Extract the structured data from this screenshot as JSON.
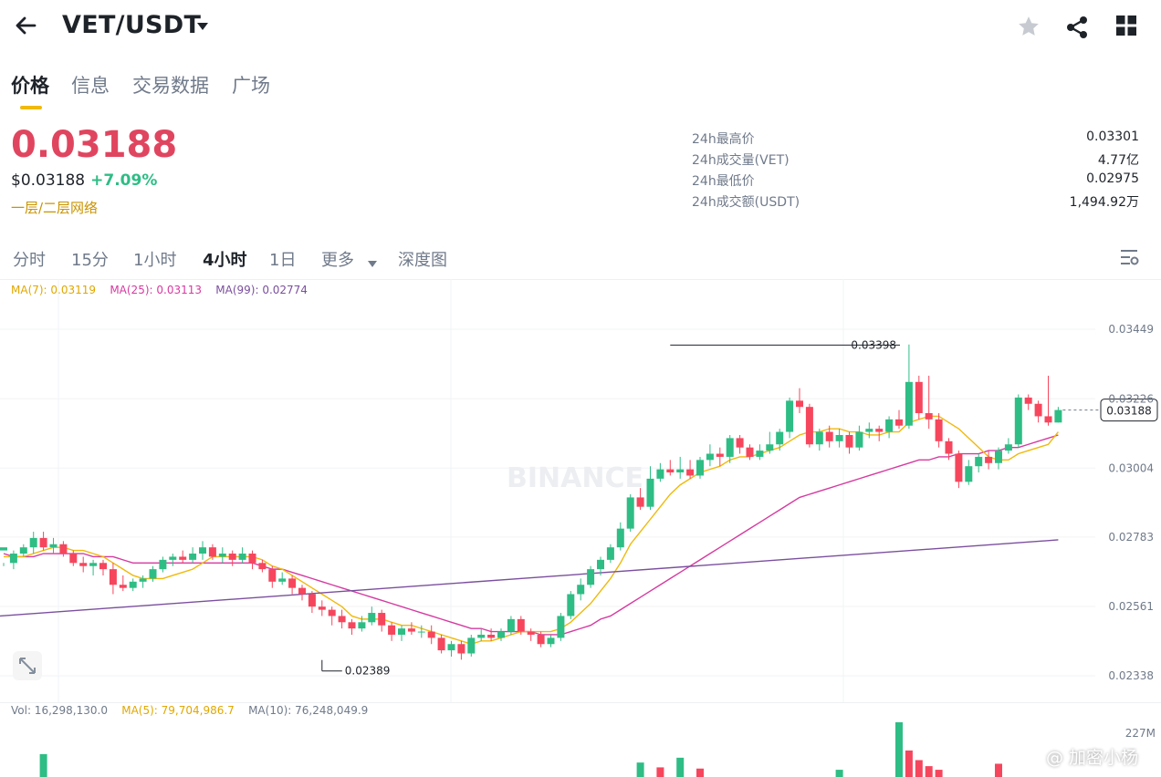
{
  "header": {
    "pair": "VET/USDT",
    "back_icon": "arrow-left-icon",
    "dropdown_icon": "caret-down-icon",
    "star_icon": "star-icon",
    "share_icon": "share-icon",
    "grid_icon": "grid-icon"
  },
  "tabs": [
    "价格",
    "信息",
    "交易数据",
    "广场"
  ],
  "price": {
    "last": "0.03188",
    "usd": "$0.03188",
    "change": "+7.09%",
    "network": "一层/二层网络"
  },
  "stats": [
    {
      "label": "24h最高价",
      "value": "0.03301"
    },
    {
      "label": "24h成交量(VET)",
      "value": "4.77亿"
    },
    {
      "label": "24h最低价",
      "value": "0.02975"
    },
    {
      "label": "24h成交额(USDT)",
      "value": "1,494.92万"
    }
  ],
  "intervals": [
    "分时",
    "15分",
    "1小时",
    "4小时",
    "1日",
    "更多",
    "深度图"
  ],
  "active_interval": "4小时",
  "ma": {
    "ma7": "MA(7): 0.03119",
    "ma25": "MA(25): 0.03113",
    "ma99": "MA(99): 0.02774"
  },
  "vol": {
    "vol": "Vol: 16,298,130.0",
    "ma5": "MA(5): 79,704,986.7",
    "ma10": "MA(10): 76,248,049.9",
    "max_label": "227M"
  },
  "watermark": "BINANCE",
  "corner_watermark": "@ 加密小杨",
  "colors": {
    "up": "#2ebd85",
    "down": "#f6465d",
    "ma7": "#f0b90b",
    "ma25": "#d63aa0",
    "ma99": "#7b4f9e",
    "accent": "#f0b90b"
  },
  "chart_data": {
    "type": "candlestick",
    "y_ticks": [
      "0.03449",
      "0.03226",
      "0.03004",
      "0.02783",
      "0.02561",
      "0.02338"
    ],
    "y_tick_values": [
      0.03449,
      0.03226,
      0.03004,
      0.02783,
      0.02561,
      0.02338
    ],
    "ylim": [
      0.0228,
      0.0356
    ],
    "last_price_label": "0.03188",
    "high_marker": {
      "label": "0.03398",
      "value": 0.03398,
      "index": 67
    },
    "low_marker": {
      "label": "0.02389",
      "value": 0.02389,
      "index": 32
    },
    "candles": [
      [
        0.0274,
        0.0275,
        0.027,
        0.0269
      ],
      [
        0.027,
        0.0273,
        0.0274,
        0.0268
      ],
      [
        0.0273,
        0.0275,
        0.0276,
        0.0272
      ],
      [
        0.0275,
        0.0278,
        0.028,
        0.0273
      ],
      [
        0.0278,
        0.0275,
        0.028,
        0.0274
      ],
      [
        0.0275,
        0.0276,
        0.0278,
        0.0273
      ],
      [
        0.0276,
        0.0273,
        0.0277,
        0.0272
      ],
      [
        0.0273,
        0.027,
        0.0274,
        0.0269
      ],
      [
        0.027,
        0.0269,
        0.0272,
        0.0267
      ],
      [
        0.0269,
        0.027,
        0.0271,
        0.0266
      ],
      [
        0.027,
        0.0268,
        0.0271,
        0.0266
      ],
      [
        0.0268,
        0.0263,
        0.027,
        0.026
      ],
      [
        0.0263,
        0.0262,
        0.0266,
        0.0261
      ],
      [
        0.0262,
        0.0264,
        0.0265,
        0.0261
      ],
      [
        0.0264,
        0.0265,
        0.0266,
        0.0262
      ],
      [
        0.0265,
        0.0268,
        0.0269,
        0.0264
      ],
      [
        0.0268,
        0.0271,
        0.0272,
        0.0267
      ],
      [
        0.0271,
        0.0272,
        0.0273,
        0.0269
      ],
      [
        0.0272,
        0.0271,
        0.0274,
        0.027
      ],
      [
        0.0271,
        0.0273,
        0.0275,
        0.027
      ],
      [
        0.0273,
        0.0275,
        0.0277,
        0.0271
      ],
      [
        0.0275,
        0.0272,
        0.0276,
        0.0271
      ],
      [
        0.0272,
        0.0273,
        0.0275,
        0.027
      ],
      [
        0.0273,
        0.0271,
        0.0274,
        0.0269
      ],
      [
        0.0271,
        0.0273,
        0.0275,
        0.027
      ],
      [
        0.0273,
        0.027,
        0.0274,
        0.0268
      ],
      [
        0.027,
        0.0268,
        0.0271,
        0.0267
      ],
      [
        0.0268,
        0.0264,
        0.0269,
        0.0262
      ],
      [
        0.0264,
        0.0265,
        0.0267,
        0.0263
      ],
      [
        0.0265,
        0.0262,
        0.0266,
        0.026
      ],
      [
        0.0262,
        0.026,
        0.0263,
        0.0258
      ],
      [
        0.026,
        0.0256,
        0.0261,
        0.0254
      ],
      [
        0.0256,
        0.0255,
        0.0258,
        0.0253
      ],
      [
        0.0255,
        0.0253,
        0.0256,
        0.025
      ],
      [
        0.0253,
        0.0251,
        0.0255,
        0.0249
      ],
      [
        0.0251,
        0.0249,
        0.0252,
        0.0247
      ],
      [
        0.0249,
        0.0251,
        0.0253,
        0.0248
      ],
      [
        0.0251,
        0.0254,
        0.0256,
        0.025
      ],
      [
        0.0254,
        0.025,
        0.0255,
        0.0248
      ],
      [
        0.025,
        0.0247,
        0.0251,
        0.0245
      ],
      [
        0.0247,
        0.0249,
        0.025,
        0.0245
      ],
      [
        0.0249,
        0.0248,
        0.0251,
        0.0247
      ],
      [
        0.0248,
        0.0248,
        0.025,
        0.0246
      ],
      [
        0.0248,
        0.0246,
        0.025,
        0.0244
      ],
      [
        0.0246,
        0.0242,
        0.0247,
        0.0241
      ],
      [
        0.0242,
        0.0244,
        0.0245,
        0.024
      ],
      [
        0.0244,
        0.0241,
        0.0245,
        0.0239
      ],
      [
        0.0241,
        0.0246,
        0.0247,
        0.024
      ],
      [
        0.0246,
        0.0247,
        0.0249,
        0.0245
      ],
      [
        0.0247,
        0.0246,
        0.0249,
        0.0245
      ],
      [
        0.0246,
        0.0248,
        0.0249,
        0.0245
      ],
      [
        0.0248,
        0.0252,
        0.0253,
        0.0247
      ],
      [
        0.0252,
        0.0248,
        0.0253,
        0.0247
      ],
      [
        0.0248,
        0.0247,
        0.0249,
        0.0245
      ],
      [
        0.0247,
        0.0244,
        0.0248,
        0.0243
      ],
      [
        0.0244,
        0.0246,
        0.0247,
        0.0243
      ],
      [
        0.0246,
        0.0253,
        0.0254,
        0.0245
      ],
      [
        0.0253,
        0.026,
        0.0261,
        0.0252
      ],
      [
        0.026,
        0.0263,
        0.0265,
        0.0258
      ],
      [
        0.0263,
        0.0268,
        0.0269,
        0.0262
      ],
      [
        0.0268,
        0.0271,
        0.0272,
        0.0266
      ],
      [
        0.0271,
        0.0275,
        0.0276,
        0.027
      ],
      [
        0.0275,
        0.0281,
        0.0283,
        0.0274
      ],
      [
        0.0281,
        0.0291,
        0.0292,
        0.028
      ],
      [
        0.0291,
        0.0288,
        0.0294,
        0.0287
      ],
      [
        0.0288,
        0.0297,
        0.0301,
        0.0287
      ],
      [
        0.0297,
        0.03,
        0.0302,
        0.0296
      ],
      [
        0.03,
        0.0299,
        0.0303,
        0.0298
      ],
      [
        0.0299,
        0.03,
        0.0304,
        0.0297
      ],
      [
        0.03,
        0.0298,
        0.0303,
        0.0297
      ],
      [
        0.0298,
        0.0303,
        0.0304,
        0.0297
      ],
      [
        0.0303,
        0.0305,
        0.0308,
        0.0301
      ],
      [
        0.0305,
        0.0304,
        0.0307,
        0.0301
      ],
      [
        0.0304,
        0.031,
        0.0311,
        0.0302
      ],
      [
        0.031,
        0.0307,
        0.0311,
        0.0305
      ],
      [
        0.0307,
        0.0304,
        0.0308,
        0.0303
      ],
      [
        0.0304,
        0.0306,
        0.0308,
        0.0303
      ],
      [
        0.0306,
        0.0308,
        0.0312,
        0.0305
      ],
      [
        0.0308,
        0.0312,
        0.0313,
        0.0306
      ],
      [
        0.0312,
        0.0322,
        0.0323,
        0.031
      ],
      [
        0.0322,
        0.032,
        0.0326,
        0.0318
      ],
      [
        0.032,
        0.0308,
        0.0321,
        0.0307
      ],
      [
        0.0308,
        0.0312,
        0.0313,
        0.0306
      ],
      [
        0.0312,
        0.0309,
        0.0314,
        0.0307
      ],
      [
        0.0309,
        0.0311,
        0.0313,
        0.0307
      ],
      [
        0.0311,
        0.0307,
        0.0312,
        0.0305
      ],
      [
        0.0307,
        0.0312,
        0.0314,
        0.0306
      ],
      [
        0.0312,
        0.0313,
        0.0315,
        0.031
      ],
      [
        0.0313,
        0.0312,
        0.0314,
        0.0309
      ],
      [
        0.0312,
        0.0316,
        0.0317,
        0.031
      ],
      [
        0.0316,
        0.0314,
        0.0319,
        0.0313
      ],
      [
        0.0314,
        0.0328,
        0.034,
        0.0313
      ],
      [
        0.0328,
        0.0318,
        0.033,
        0.0316
      ],
      [
        0.0318,
        0.0316,
        0.033,
        0.0313
      ],
      [
        0.0316,
        0.0309,
        0.0318,
        0.0307
      ],
      [
        0.0309,
        0.0305,
        0.031,
        0.0303
      ],
      [
        0.0305,
        0.0296,
        0.0306,
        0.0294
      ],
      [
        0.0296,
        0.0301,
        0.0303,
        0.0295
      ],
      [
        0.0301,
        0.0304,
        0.0305,
        0.0299
      ],
      [
        0.0304,
        0.0302,
        0.0306,
        0.03
      ],
      [
        0.0302,
        0.0306,
        0.0307,
        0.03
      ],
      [
        0.0306,
        0.0308,
        0.031,
        0.0305
      ],
      [
        0.0308,
        0.0323,
        0.0324,
        0.0307
      ],
      [
        0.0323,
        0.0321,
        0.0324,
        0.0319
      ],
      [
        0.0321,
        0.0317,
        0.0322,
        0.0315
      ],
      [
        0.0317,
        0.0315,
        0.033,
        0.0314
      ],
      [
        0.0315,
        0.0319,
        0.032,
        0.0315
      ]
    ],
    "ma7_values": [
      0.0272,
      0.0272,
      0.0272,
      0.0273,
      0.0274,
      0.0275,
      0.0275,
      0.0274,
      0.0274,
      0.0273,
      0.0272,
      0.027,
      0.0268,
      0.0266,
      0.0265,
      0.0265,
      0.0265,
      0.0266,
      0.0267,
      0.0268,
      0.027,
      0.0272,
      0.0272,
      0.0272,
      0.0272,
      0.0272,
      0.0271,
      0.0269,
      0.0268,
      0.0266,
      0.0264,
      0.0262,
      0.026,
      0.0258,
      0.0256,
      0.0253,
      0.0252,
      0.0252,
      0.0252,
      0.0251,
      0.025,
      0.025,
      0.0249,
      0.0248,
      0.0247,
      0.0246,
      0.0245,
      0.0244,
      0.0245,
      0.0245,
      0.0246,
      0.0247,
      0.0248,
      0.0248,
      0.0248,
      0.0248,
      0.0249,
      0.0251,
      0.0254,
      0.0257,
      0.0261,
      0.0265,
      0.027,
      0.0276,
      0.028,
      0.0284,
      0.0288,
      0.0292,
      0.0295,
      0.0297,
      0.0299,
      0.03,
      0.0301,
      0.0303,
      0.0304,
      0.0304,
      0.0305,
      0.0306,
      0.0307,
      0.0309,
      0.0311,
      0.0312,
      0.0312,
      0.0313,
      0.0313,
      0.0312,
      0.0312,
      0.0311,
      0.0311,
      0.0312,
      0.0312,
      0.0315,
      0.0316,
      0.0317,
      0.0317,
      0.0315,
      0.0313,
      0.031,
      0.0307,
      0.0304,
      0.0303,
      0.0303,
      0.0305,
      0.0306,
      0.0307,
      0.0308,
      0.0312
    ],
    "ma25_values": [
      0.0273,
      0.0272,
      0.0272,
      0.0272,
      0.0273,
      0.0273,
      0.0273,
      0.0273,
      0.0273,
      0.0272,
      0.0272,
      0.0272,
      0.0271,
      0.027,
      0.027,
      0.027,
      0.027,
      0.027,
      0.027,
      0.027,
      0.027,
      0.027,
      0.027,
      0.027,
      0.027,
      0.027,
      0.0269,
      0.0268,
      0.0268,
      0.0267,
      0.0266,
      0.0265,
      0.0264,
      0.0263,
      0.0262,
      0.0261,
      0.026,
      0.0259,
      0.0258,
      0.0257,
      0.0256,
      0.0255,
      0.0254,
      0.0253,
      0.0252,
      0.0251,
      0.025,
      0.0249,
      0.0249,
      0.0248,
      0.0248,
      0.0248,
      0.0248,
      0.0248,
      0.0247,
      0.0247,
      0.0247,
      0.0248,
      0.0249,
      0.025,
      0.0252,
      0.0253,
      0.0255,
      0.0257,
      0.0259,
      0.0261,
      0.0263,
      0.0265,
      0.0267,
      0.0269,
      0.0271,
      0.0273,
      0.0275,
      0.0277,
      0.0279,
      0.0281,
      0.0283,
      0.0285,
      0.0287,
      0.0289,
      0.0291,
      0.0292,
      0.0293,
      0.0294,
      0.0295,
      0.0296,
      0.0297,
      0.0298,
      0.0299,
      0.03,
      0.0301,
      0.0302,
      0.0303,
      0.0303,
      0.0304,
      0.0304,
      0.0305,
      0.0305,
      0.0305,
      0.0306,
      0.0306,
      0.0307,
      0.0307,
      0.0308,
      0.0309,
      0.031,
      0.0311
    ],
    "ma99_values": [
      0.0253,
      0.02774
    ],
    "volumes": [
      null,
      null,
      null,
      null,
      {
        "v": 95,
        "up": true
      },
      null,
      null,
      null,
      null,
      null,
      null,
      null,
      null,
      null,
      null,
      null,
      null,
      null,
      null,
      null,
      null,
      null,
      null,
      null,
      null,
      null,
      null,
      null,
      null,
      null,
      null,
      null,
      null,
      null,
      null,
      null,
      null,
      null,
      null,
      null,
      null,
      null,
      null,
      null,
      null,
      null,
      null,
      null,
      null,
      null,
      null,
      null,
      null,
      null,
      null,
      null,
      null,
      null,
      null,
      null,
      null,
      null,
      null,
      null,
      {
        "v": 60,
        "up": true
      },
      null,
      {
        "v": 40,
        "up": false
      },
      null,
      {
        "v": 80,
        "up": true
      },
      null,
      {
        "v": 35,
        "up": false
      },
      null,
      null,
      null,
      null,
      null,
      null,
      null,
      null,
      null,
      null,
      null,
      null,
      null,
      {
        "v": 30,
        "up": true
      },
      null,
      null,
      null,
      null,
      null,
      {
        "v": 227,
        "up": true
      },
      {
        "v": 110,
        "up": false
      },
      {
        "v": 70,
        "up": false
      },
      {
        "v": 45,
        "up": false
      },
      {
        "v": 30,
        "up": false
      },
      null,
      null,
      null,
      null,
      null,
      {
        "v": 55,
        "up": false
      },
      null
    ]
  }
}
